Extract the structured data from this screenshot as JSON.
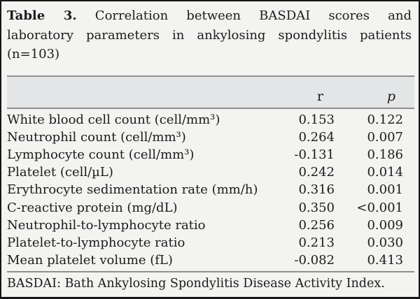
{
  "title": {
    "label": "Table 3.",
    "line1_rest": "Correlation between BASDAI scores and",
    "line2": "laboratory parameters in ankylosing spondylitis patients",
    "line3": "(n=103)"
  },
  "table": {
    "header": {
      "param": "",
      "r": "r",
      "p": "p"
    },
    "rows": [
      {
        "label": "White blood cell count (cell/mm³)",
        "r": "0.153",
        "p": "0.122"
      },
      {
        "label": "Neutrophil count (cell/mm³)",
        "r": "0.264",
        "p": "0.007"
      },
      {
        "label": "Lymphocyte count (cell/mm³)",
        "r": "-0.131",
        "p": "0.186"
      },
      {
        "label": "Platelet (cell/µL)",
        "r": "0.242",
        "p": "0.014"
      },
      {
        "label": "Erythrocyte sedimentation rate (mm/h)",
        "r": "0.316",
        "p": "0.001"
      },
      {
        "label": "C-reactive protein (mg/dL)",
        "r": "0.350",
        "p": "<0.001"
      },
      {
        "label": "Neutrophil-to-lymphocyte ratio",
        "r": "0.256",
        "p": "0.009"
      },
      {
        "label": "Platelet-to-lymphocyte ratio",
        "r": "0.213",
        "p": "0.030"
      },
      {
        "label": "Mean platelet volume (fL)",
        "r": "-0.082",
        "p": "0.413"
      }
    ]
  },
  "footnote": "BASDAI: Bath Ankylosing Spondylitis Disease Activity Index.",
  "colors": {
    "background": "#f3f3f1",
    "header_background": "#e4e5e7",
    "rule": "#8f8f8f",
    "border": "#161616",
    "text": "#1b1b1b"
  }
}
